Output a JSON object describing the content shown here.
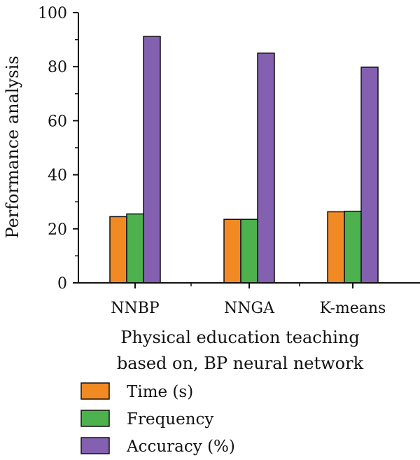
{
  "chart_data": {
    "type": "bar",
    "title": "",
    "xlabel_lines": [
      "Physical education teaching",
      "based on, BP neural network"
    ],
    "ylabel": "Performance analysis",
    "categories": [
      "NNBP",
      "NNGA",
      "K-means"
    ],
    "ylim": [
      0,
      100
    ],
    "yticks": [
      0,
      20,
      40,
      60,
      80,
      100
    ],
    "grid": false,
    "legend_position": "bottom",
    "series": [
      {
        "name": "Time (s)",
        "color": "#f28a24",
        "values": [
          24.5,
          23.5,
          26.3
        ]
      },
      {
        "name": "Frequency",
        "color": "#4db24d",
        "values": [
          25.5,
          23.5,
          26.5
        ]
      },
      {
        "name": "Accuracy (%)",
        "color": "#8460b0",
        "values": [
          91.2,
          85.0,
          79.8
        ]
      }
    ]
  }
}
